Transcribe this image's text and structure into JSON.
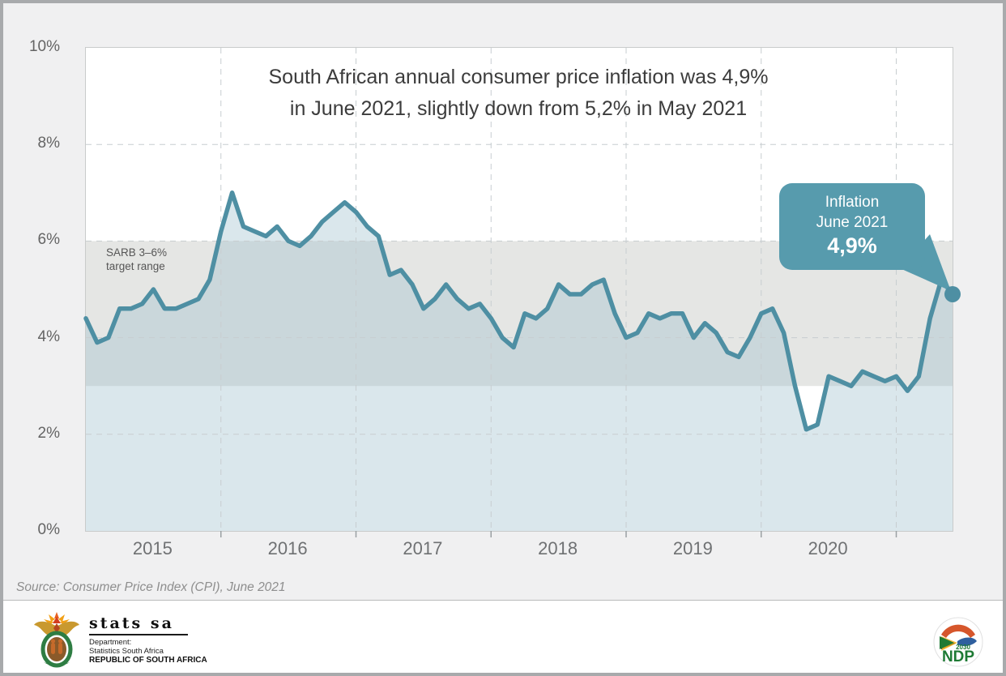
{
  "title": {
    "line1": "South African annual consumer price inflation was 4,9%",
    "line2": "in June 2021, slightly down from 5,2% in May 2021"
  },
  "band_label": {
    "line1": "SARB 3–6%",
    "line2": "target range"
  },
  "callout": {
    "line1": "Inflation",
    "line2": "June 2021",
    "value": "4,9%"
  },
  "source": "Source: Consumer Price Index (CPI), June 2021",
  "footer": {
    "statssa": {
      "wordmark": "stats sa",
      "dept_line1": "Department:",
      "dept_line2": "Statistics South Africa",
      "dept_line3": "REPUBLIC OF SOUTH AFRICA"
    },
    "ndp": {
      "label": "NDP",
      "year": "2030"
    }
  },
  "colors": {
    "line_teal": "#4e8fa3",
    "callout_teal": "#579bad",
    "band_gray": "#e5e6e4",
    "area_blue_rgba": "rgba(158,191,206,0.38)",
    "grid_dash": "#c7cdd0",
    "tick": "#9aa0a3",
    "plot_border": "#c9cbcb"
  },
  "chart_data": {
    "type": "area",
    "title": "South African annual consumer price inflation was 4,9% in June 2021, slightly down from 5,2% in May 2021",
    "x_start": "2015-01",
    "x_end": "2021-06",
    "x_tick_labels": [
      "2015",
      "2016",
      "2017",
      "2018",
      "2019",
      "2020"
    ],
    "months_per_year": 12,
    "ylim": [
      0,
      10
    ],
    "y_ticks": [
      0,
      2,
      4,
      6,
      8,
      10
    ],
    "y_tick_labels": [
      "0%",
      "2%",
      "4%",
      "6%",
      "8%",
      "10%"
    ],
    "grid_y_dashed": [
      2,
      4,
      6,
      8
    ],
    "grid": "dashed",
    "legend_position": "none",
    "band": {
      "from": 3,
      "to": 6,
      "label": "SARB 3–6% target range"
    },
    "series": [
      {
        "name": "Annual consumer price inflation (%)",
        "monthly_values": [
          4.4,
          3.9,
          4.0,
          4.6,
          4.6,
          4.7,
          5.0,
          4.6,
          4.6,
          4.7,
          4.8,
          5.2,
          6.2,
          7.0,
          6.3,
          6.2,
          6.1,
          6.3,
          6.0,
          5.9,
          6.1,
          6.4,
          6.6,
          6.8,
          6.6,
          6.3,
          6.1,
          5.3,
          5.4,
          5.1,
          4.6,
          4.8,
          5.1,
          4.8,
          4.6,
          4.7,
          4.4,
          4.0,
          3.8,
          4.5,
          4.4,
          4.6,
          5.1,
          4.9,
          4.9,
          5.1,
          5.2,
          4.5,
          4.0,
          4.1,
          4.5,
          4.4,
          4.5,
          4.5,
          4.0,
          4.3,
          4.1,
          3.7,
          3.6,
          4.0,
          4.5,
          4.6,
          4.1,
          3.0,
          2.1,
          2.2,
          3.2,
          3.1,
          3.0,
          3.3,
          3.2,
          3.1,
          3.2,
          2.9,
          3.2,
          4.4,
          5.2,
          4.9
        ]
      }
    ],
    "annotation": {
      "label": "Inflation June 2021",
      "value": 4.9,
      "value_label": "4,9%"
    }
  }
}
